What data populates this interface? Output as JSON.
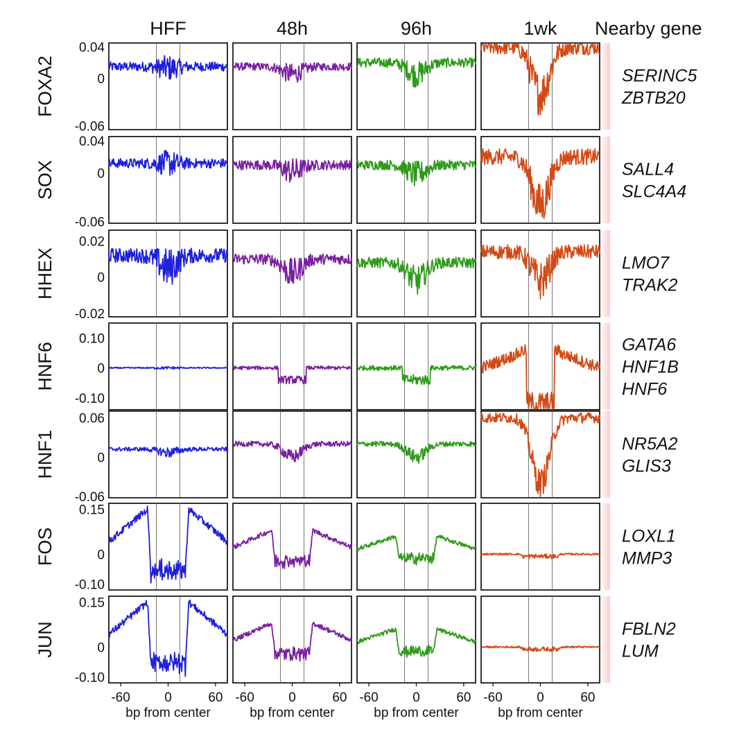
{
  "chart_data": {
    "type": "line",
    "columns": [
      "HFF",
      "48h",
      "96h",
      "1wk"
    ],
    "gene_header": "Nearby gene",
    "colors": {
      "HFF": "#1f1fdc",
      "48h": "#7a1fa0",
      "96h": "#2e9a1a",
      "1wk": "#d24a16"
    },
    "xlabel": "bp from center",
    "xlim": [
      -75,
      75
    ],
    "xticks": [
      -60,
      0,
      60
    ],
    "core_region": [
      -15,
      15
    ],
    "shade_color": "#ffcccc",
    "rows": [
      {
        "name": "FOXA2",
        "ylim": [
          -0.065,
          0.045
        ],
        "yticks": [
          0.04,
          0,
          -0.06
        ],
        "ytick_labels": [
          "0.04",
          "0",
          "-0.06"
        ],
        "genes": [
          "SERINC5",
          "ZBTB20"
        ],
        "profile": "wide",
        "levels": [
          0.015,
          0.015,
          0.02,
          0.04
        ],
        "dips": [
          0.002,
          0.01,
          0.015,
          0.06
        ],
        "noise": [
          0.006,
          0.005,
          0.006,
          0.01
        ]
      },
      {
        "name": "SOX",
        "ylim": [
          -0.062,
          0.045
        ],
        "yticks": [
          0.04,
          0,
          -0.06
        ],
        "ytick_labels": [
          "0.04",
          "0",
          "-0.06"
        ],
        "genes": [
          "SALL4",
          "SLC4A4"
        ],
        "profile": "wide",
        "levels": [
          0.012,
          0.01,
          0.01,
          0.02
        ],
        "dips": [
          0.0,
          0.008,
          0.012,
          0.06
        ],
        "noise": [
          0.006,
          0.006,
          0.006,
          0.01
        ]
      },
      {
        "name": "HHEX",
        "ylim": [
          -0.022,
          0.026
        ],
        "yticks": [
          0.02,
          0,
          -0.02
        ],
        "ytick_labels": [
          "0.02",
          "0",
          "-0.02"
        ],
        "genes": [
          "LMO7",
          "TRAK2"
        ],
        "profile": "wide",
        "levels": [
          0.012,
          0.01,
          0.008,
          0.014
        ],
        "dips": [
          0.007,
          0.008,
          0.01,
          0.016
        ],
        "noise": [
          0.004,
          0.003,
          0.003,
          0.004
        ]
      },
      {
        "name": "HNF6",
        "ylim": [
          -0.14,
          0.15
        ],
        "yticks": [
          0.1,
          0,
          -0.1
        ],
        "ytick_labels": [
          "0.10",
          "0",
          "-0.10"
        ],
        "genes": [
          "GATA6",
          "HNF1B",
          "HNF6"
        ],
        "profile": "step",
        "levels": [
          0.0,
          0.0,
          0.0,
          0.05
        ],
        "dips": [
          0.0,
          0.04,
          0.04,
          0.18
        ],
        "noise": [
          0.002,
          0.006,
          0.008,
          0.02
        ]
      },
      {
        "name": "HNF1",
        "ylim": [
          -0.062,
          0.07
        ],
        "yticks": [
          0.06,
          0,
          -0.06
        ],
        "ytick_labels": [
          "0.06",
          "0",
          "-0.06"
        ],
        "genes": [
          "NR5A2",
          "GLIS3"
        ],
        "profile": "wide",
        "levels": [
          0.012,
          0.02,
          0.02,
          0.06
        ],
        "dips": [
          0.005,
          0.02,
          0.02,
          0.1
        ],
        "noise": [
          0.003,
          0.004,
          0.004,
          0.008
        ]
      },
      {
        "name": "FOS",
        "ylim": [
          -0.12,
          0.17
        ],
        "yticks": [
          0.15,
          0,
          -0.1
        ],
        "ytick_labels": [
          "0.15",
          "0",
          "-0.10"
        ],
        "genes": [
          "LOXL1",
          "MMP3"
        ],
        "profile": "flank",
        "levels": [
          0.15,
          0.08,
          0.06,
          0.0
        ],
        "dips": [
          0.22,
          0.11,
          0.08,
          0.008
        ],
        "noise": [
          0.012,
          0.008,
          0.007,
          0.003
        ]
      },
      {
        "name": "JUN",
        "ylim": [
          -0.12,
          0.17
        ],
        "yticks": [
          0.15,
          0,
          -0.1
        ],
        "ytick_labels": [
          "0.15",
          "0",
          "-0.10"
        ],
        "genes": [
          "FBLN2",
          "LUM"
        ],
        "profile": "flank",
        "levels": [
          0.15,
          0.08,
          0.06,
          0.0
        ],
        "dips": [
          0.22,
          0.11,
          0.08,
          0.008
        ],
        "noise": [
          0.012,
          0.008,
          0.007,
          0.003
        ]
      }
    ]
  }
}
